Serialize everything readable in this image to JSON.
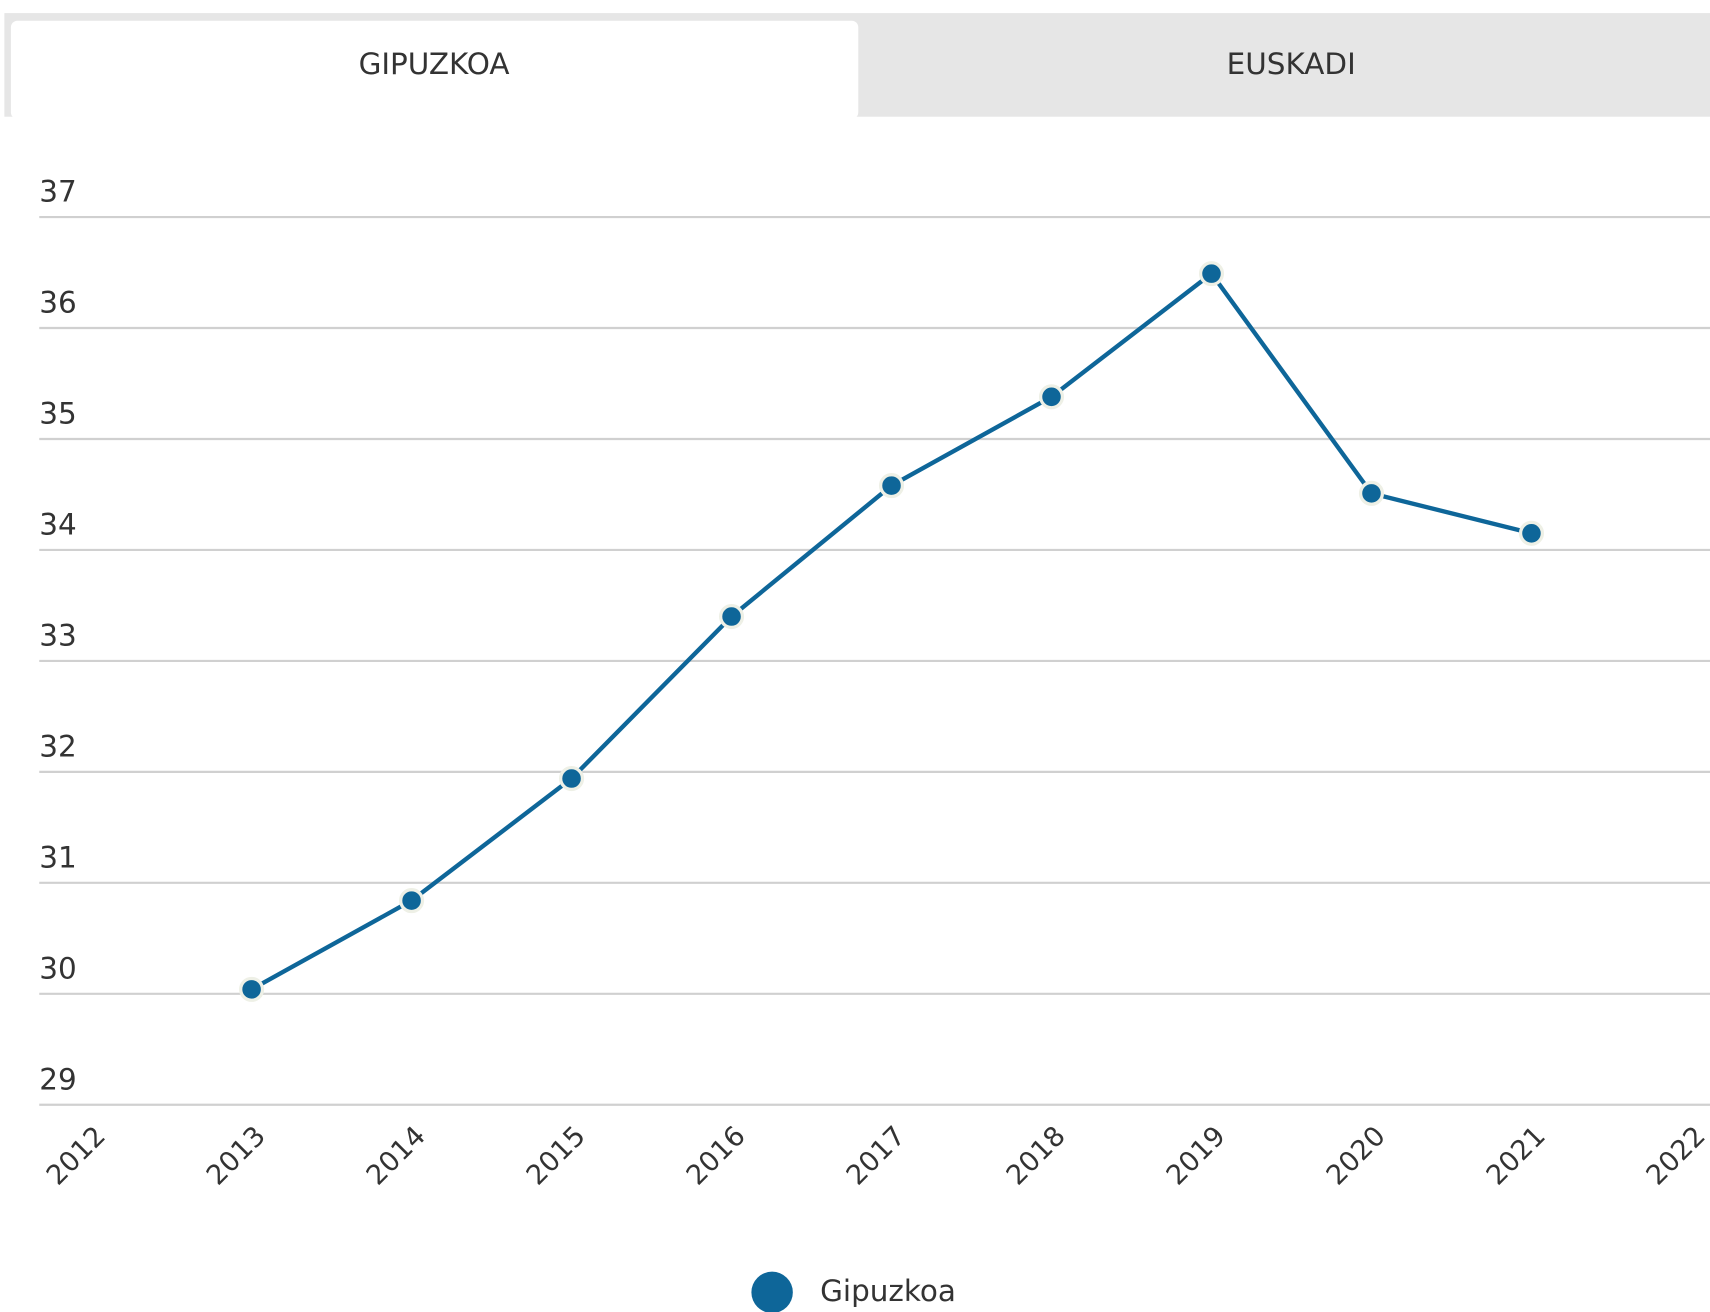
{
  "tabs": [
    "GIPUZKOA",
    "EUSKADI"
  ],
  "chart_data": {
    "type": "line",
    "x": [
      2013,
      2014,
      2015,
      2016,
      2017,
      2018,
      2019,
      2020,
      2021
    ],
    "series": [
      {
        "name": "Gipuzkoa",
        "color": "#0e6699",
        "values": [
          30.04,
          30.84,
          31.94,
          33.4,
          34.58,
          35.38,
          36.49,
          34.51,
          34.15
        ]
      }
    ],
    "xlim": [
      2012,
      2022
    ],
    "xticks": [
      2012,
      2013,
      2014,
      2015,
      2016,
      2017,
      2018,
      2019,
      2020,
      2021,
      2022
    ],
    "ylim": [
      29,
      37
    ],
    "yticks": [
      29,
      30,
      31,
      32,
      33,
      34,
      35,
      36,
      37
    ],
    "grid": true
  }
}
